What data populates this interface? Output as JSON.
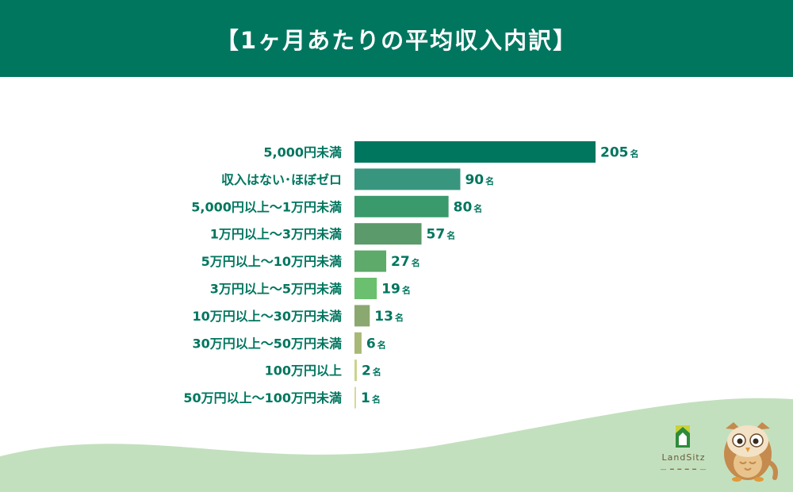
{
  "header": {
    "title": "【1ヶ月あたりの平均収入内訳】"
  },
  "chart_data": {
    "type": "bar",
    "orientation": "horizontal",
    "title": "【1ヶ月あたりの平均収入内訳】",
    "unit": "名",
    "categories": [
      "5,000円未満",
      "収入はない･ほぼゼロ",
      "5,000円以上〜1万円未満",
      "1万円以上〜3万円未満",
      "5万円以上〜10万円未満",
      "3万円以上〜5万円未満",
      "10万円以上〜30万円未満",
      "30万円以上〜50万円未満",
      "100万円以上",
      "50万円以上〜100万円未満"
    ],
    "values": [
      205,
      90,
      80,
      57,
      27,
      19,
      13,
      6,
      2,
      1
    ],
    "colors": [
      "#00765f",
      "#38967f",
      "#3a9a6c",
      "#5b9a6a",
      "#5daa6a",
      "#6ac06e",
      "#8aa870",
      "#a8b876",
      "#c9d48a",
      "#d2dc96"
    ],
    "xlim": [
      0,
      205
    ],
    "grid": false,
    "legend": "none"
  },
  "branding": {
    "logo_name": "LandSitz",
    "mascot": "owl-icon",
    "logo_icon": "house-icon"
  }
}
